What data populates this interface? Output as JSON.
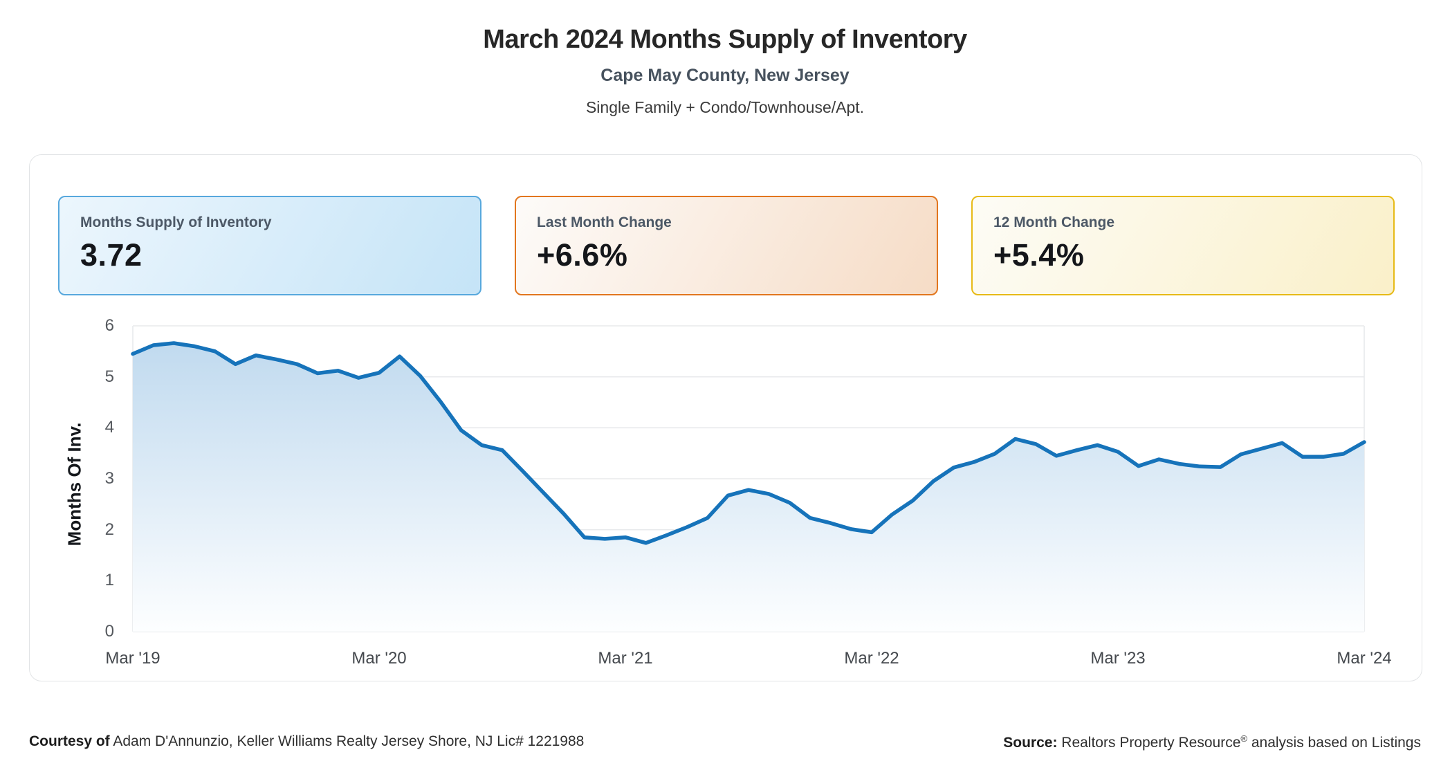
{
  "header": {
    "title": "March 2024 Months Supply of Inventory",
    "subtitle": "Cape May County, New Jersey",
    "property_types": "Single Family + Condo/Townhouse/Apt."
  },
  "stat_cards": [
    {
      "label": "Months Supply of Inventory",
      "value": "3.72",
      "border_color": "#57a8dd",
      "bg_from": "#ecf6fd",
      "bg_to": "#c5e4f7"
    },
    {
      "label": "Last Month Change",
      "value": "+6.6%",
      "border_color": "#e2761e",
      "bg_from": "#fdfbf9",
      "bg_to": "#f6dcc6"
    },
    {
      "label": "12 Month Change",
      "value": "+5.4%",
      "border_color": "#e7ba17",
      "bg_from": "#fdfcf6",
      "bg_to": "#faf0c9"
    }
  ],
  "chart_data": {
    "type": "area",
    "title": "March 2024 Months Supply of Inventory",
    "ylabel": "Months Of Inv.",
    "xlabel": "",
    "ylim": [
      0,
      6
    ],
    "y_ticks": [
      0,
      1,
      2,
      3,
      4,
      5,
      6
    ],
    "x_tick_labels": [
      "Mar '19",
      "Mar '20",
      "Mar '21",
      "Mar '22",
      "Mar '23",
      "Mar '24"
    ],
    "x_tick_indices": [
      0,
      12,
      24,
      36,
      48,
      60
    ],
    "grid": true,
    "legend": false,
    "months": [
      "2019-03",
      "2019-04",
      "2019-05",
      "2019-06",
      "2019-07",
      "2019-08",
      "2019-09",
      "2019-10",
      "2019-11",
      "2019-12",
      "2020-01",
      "2020-02",
      "2020-03",
      "2020-04",
      "2020-05",
      "2020-06",
      "2020-07",
      "2020-08",
      "2020-09",
      "2020-10",
      "2020-11",
      "2020-12",
      "2021-01",
      "2021-02",
      "2021-03",
      "2021-04",
      "2021-05",
      "2021-06",
      "2021-07",
      "2021-08",
      "2021-09",
      "2021-10",
      "2021-11",
      "2021-12",
      "2022-01",
      "2022-02",
      "2022-03",
      "2022-04",
      "2022-05",
      "2022-06",
      "2022-07",
      "2022-08",
      "2022-09",
      "2022-10",
      "2022-11",
      "2022-12",
      "2023-01",
      "2023-02",
      "2023-03",
      "2023-04",
      "2023-05",
      "2023-06",
      "2023-07",
      "2023-08",
      "2023-09",
      "2023-10",
      "2023-11",
      "2023-12",
      "2024-01",
      "2024-02",
      "2024-03"
    ],
    "values": [
      5.45,
      5.62,
      5.66,
      5.6,
      5.5,
      5.25,
      5.42,
      5.34,
      5.25,
      5.07,
      5.12,
      4.98,
      5.08,
      5.4,
      5.02,
      4.51,
      3.95,
      3.66,
      3.56,
      3.15,
      2.73,
      2.31,
      1.85,
      1.82,
      1.85,
      1.74,
      1.89,
      2.05,
      2.23,
      2.67,
      2.78,
      2.7,
      2.53,
      2.23,
      2.13,
      2.01,
      1.95,
      2.3,
      2.57,
      2.95,
      3.22,
      3.33,
      3.49,
      3.78,
      3.68,
      3.45,
      3.56,
      3.66,
      3.53,
      3.25,
      3.38,
      3.29,
      3.24,
      3.23,
      3.48,
      3.59,
      3.7,
      3.43,
      3.43,
      3.49,
      3.72
    ],
    "line_color": "#1673ba",
    "area_top_color": "#bdd8ee",
    "area_bottom_color": "#fdfeff",
    "grid_color": "#e8eaec",
    "baseline_color": "#dfe2e5"
  },
  "footer": {
    "courtesy_label": "Courtesy of",
    "courtesy_text": " Adam D'Annunzio, Keller Williams Realty Jersey Shore, NJ Lic# 1221988",
    "source_label": "Source:",
    "source_text_1": " Realtors Property Resource",
    "source_reg": "®",
    "source_text_2": " analysis based on Listings"
  }
}
